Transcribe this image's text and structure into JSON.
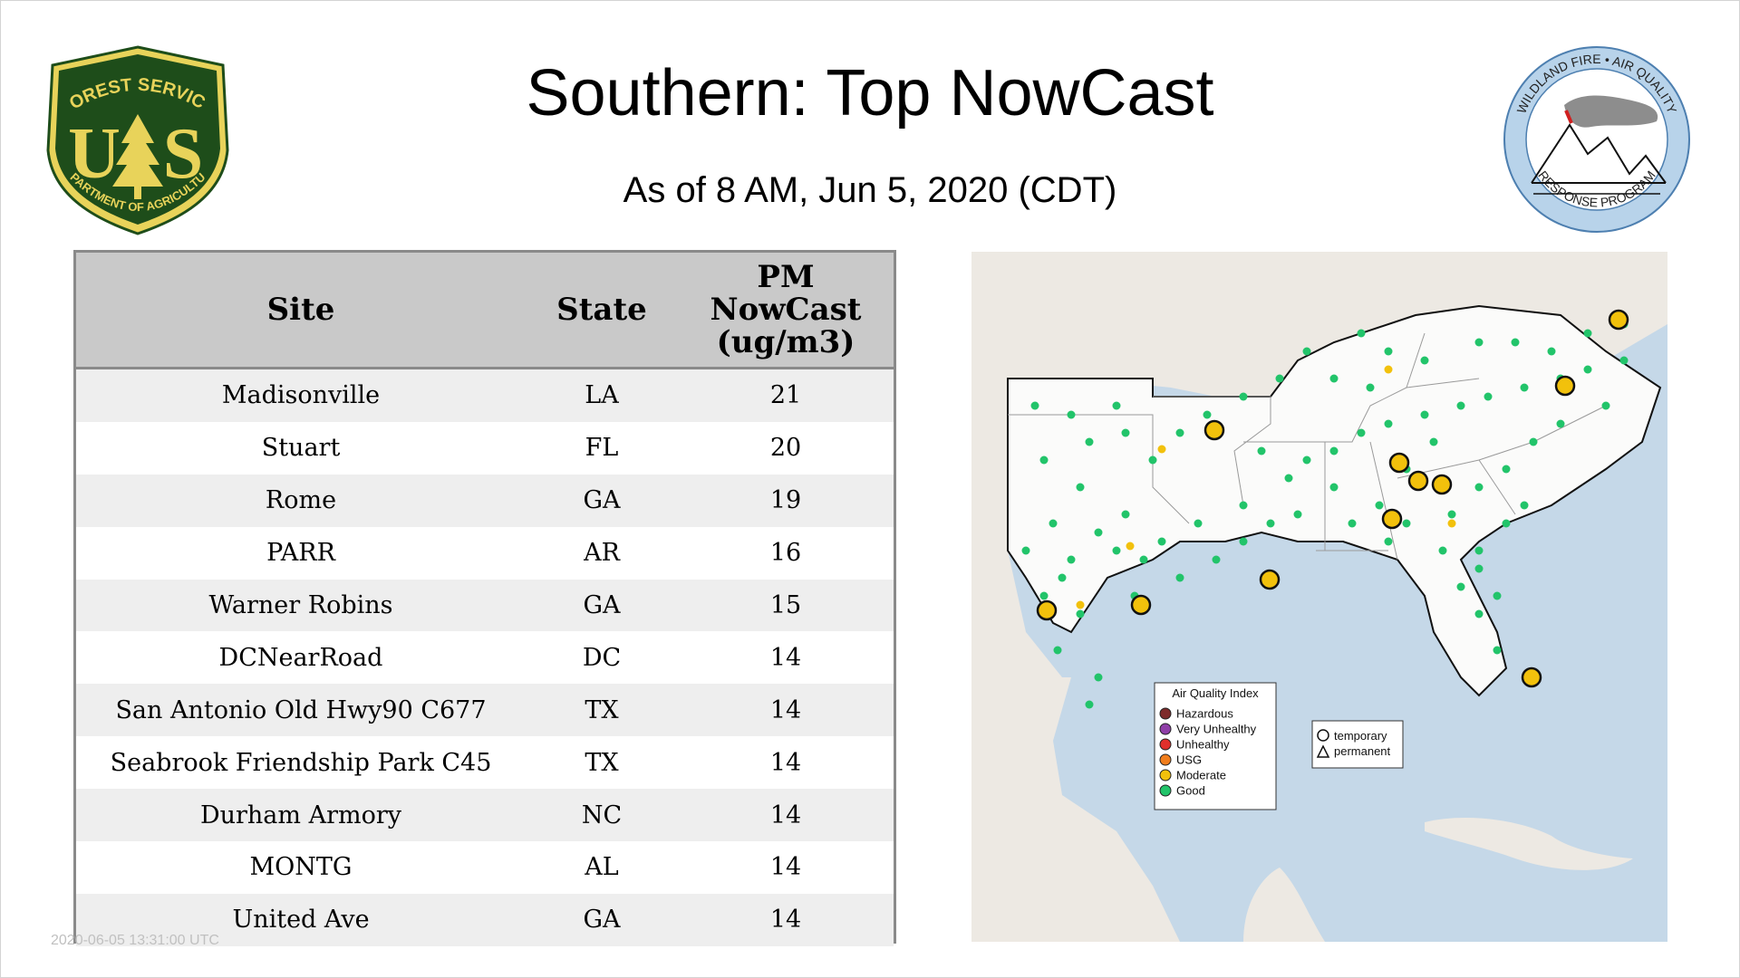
{
  "title": "Southern: Top NowCast",
  "subtitle": "As of  8 AM, Jun  5, 2020 (CDT)",
  "logos": {
    "left": {
      "top_text": "FOREST SERVICE",
      "letters": "U S",
      "bottom_text": "DEPARTMENT OF AGRICULTURE",
      "colors": {
        "green": "#1e4d1a",
        "gold": "#e8d35a"
      }
    },
    "right": {
      "top_text": "WILDLAND FIRE • AIR QUALITY",
      "bottom_text": "RESPONSE PROGRAM",
      "colors": {
        "ring": "#b8d3ea"
      }
    }
  },
  "table": {
    "headers": {
      "site": "Site",
      "state": "State",
      "pm_line1": "PM",
      "pm_line2": "NowCast",
      "pm_line3": "(ug/m3)"
    },
    "rows": [
      {
        "site": "Madisonville",
        "state": "LA",
        "value": "21"
      },
      {
        "site": "Stuart",
        "state": "FL",
        "value": "20"
      },
      {
        "site": "Rome",
        "state": "GA",
        "value": "19"
      },
      {
        "site": "PARR",
        "state": "AR",
        "value": "16"
      },
      {
        "site": "Warner Robins",
        "state": "GA",
        "value": "15"
      },
      {
        "site": "DCNearRoad",
        "state": "DC",
        "value": "14"
      },
      {
        "site": "San Antonio Old Hwy90 C677",
        "state": "TX",
        "value": "14"
      },
      {
        "site": "Seabrook Friendship Park C45",
        "state": "TX",
        "value": "14"
      },
      {
        "site": "Durham Armory",
        "state": "NC",
        "value": "14"
      },
      {
        "site": "MONTG",
        "state": "AL",
        "value": "14"
      },
      {
        "site": "United Ave",
        "state": "GA",
        "value": "14"
      }
    ]
  },
  "footer_stamp": "2020-06-05 13:31:00 UTC",
  "map": {
    "colors": {
      "water": "#c5d8e8",
      "land": "#ede9e3",
      "region": "#fbfbfa",
      "good": "#22c46a",
      "moderate": "#f2c10c"
    },
    "legend": {
      "title": "Air Quality Index",
      "items": [
        {
          "label": "Hazardous",
          "color": "#7e2b2b"
        },
        {
          "label": "Very Unhealthy",
          "color": "#8f3fa8"
        },
        {
          "label": "Unhealthy",
          "color": "#e0302c"
        },
        {
          "label": "USG",
          "color": "#f07d1c"
        },
        {
          "label": "Moderate",
          "color": "#f2c10c"
        },
        {
          "label": "Good",
          "color": "#22c46a"
        }
      ]
    },
    "type_legend": {
      "temporary": "temporary",
      "permanent": "permanent"
    }
  }
}
